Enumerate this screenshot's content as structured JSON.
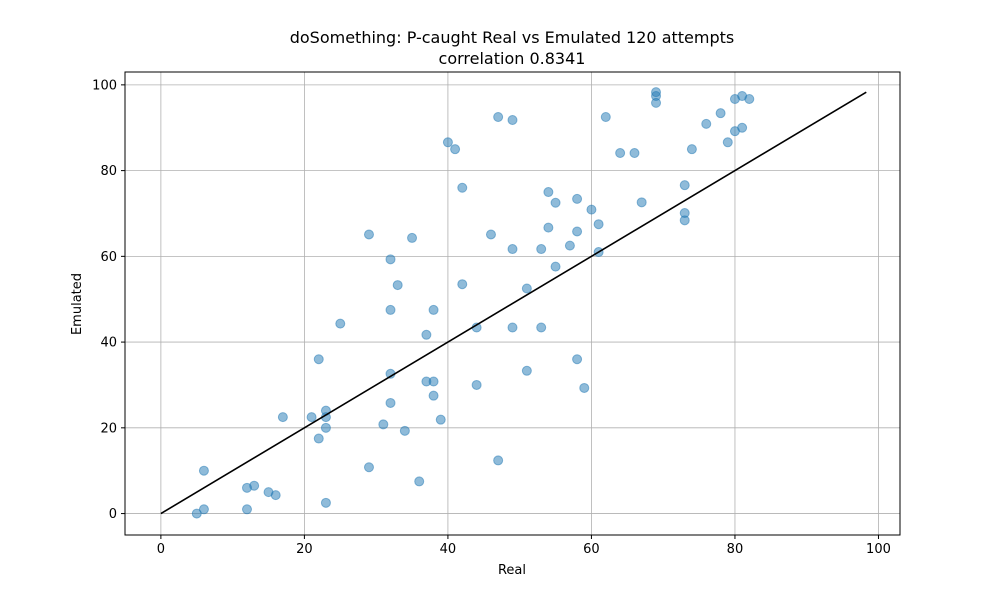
{
  "chart_data": {
    "type": "scatter",
    "title": "doSomething: P-caught Real vs Emulated 120 attempts",
    "subtitle": "correlation 0.8341",
    "xlabel": "Real",
    "ylabel": "Emulated",
    "xlim": [
      -5,
      103
    ],
    "ylim": [
      -5,
      103
    ],
    "xticks": [
      0,
      20,
      40,
      60,
      80,
      100
    ],
    "yticks": [
      0,
      20,
      40,
      60,
      80,
      100
    ],
    "grid": true,
    "colors": {
      "points": "#1f77b4",
      "line": "#000000",
      "grid": "#b0b0b0"
    },
    "reference_line": {
      "x": [
        0,
        98.3
      ],
      "y": [
        0,
        98.3
      ]
    },
    "points": [
      [
        5,
        0
      ],
      [
        6,
        1
      ],
      [
        6,
        10
      ],
      [
        12,
        1
      ],
      [
        12,
        6
      ],
      [
        13,
        6.5
      ],
      [
        15,
        5
      ],
      [
        16,
        4.3
      ],
      [
        17,
        22.5
      ],
      [
        21,
        22.5
      ],
      [
        22,
        36
      ],
      [
        22,
        17.5
      ],
      [
        23,
        2.5
      ],
      [
        23,
        20
      ],
      [
        23,
        22.5
      ],
      [
        23,
        24
      ],
      [
        25,
        44.3
      ],
      [
        29,
        65.1
      ],
      [
        29,
        10.8
      ],
      [
        31,
        20.8
      ],
      [
        32,
        59.3
      ],
      [
        32,
        47.5
      ],
      [
        32,
        32.6
      ],
      [
        32,
        25.8
      ],
      [
        33,
        53.3
      ],
      [
        34,
        19.3
      ],
      [
        35,
        64.3
      ],
      [
        36,
        7.5
      ],
      [
        37,
        41.7
      ],
      [
        37,
        30.8
      ],
      [
        38,
        47.5
      ],
      [
        38,
        30.8
      ],
      [
        38,
        27.5
      ],
      [
        39,
        21.9
      ],
      [
        40,
        86.6
      ],
      [
        41,
        85
      ],
      [
        42,
        76
      ],
      [
        42,
        53.5
      ],
      [
        44,
        43.4
      ],
      [
        44,
        30
      ],
      [
        46,
        65.1
      ],
      [
        47,
        92.5
      ],
      [
        47,
        12.4
      ],
      [
        49,
        91.8
      ],
      [
        49,
        61.7
      ],
      [
        49,
        43.4
      ],
      [
        51,
        52.5
      ],
      [
        51,
        33.3
      ],
      [
        53,
        61.7
      ],
      [
        53,
        43.4
      ],
      [
        54,
        75
      ],
      [
        54,
        66.7
      ],
      [
        55,
        72.5
      ],
      [
        55,
        57.6
      ],
      [
        57,
        62.5
      ],
      [
        58,
        73.4
      ],
      [
        58,
        65.8
      ],
      [
        58,
        36
      ],
      [
        59,
        29.3
      ],
      [
        60,
        70.9
      ],
      [
        61,
        67.5
      ],
      [
        61,
        61
      ],
      [
        62,
        92.5
      ],
      [
        64,
        84.1
      ],
      [
        66,
        84.1
      ],
      [
        67,
        72.6
      ],
      [
        69,
        98.3
      ],
      [
        69,
        97.4
      ],
      [
        69,
        95.8
      ],
      [
        73,
        76.6
      ],
      [
        73,
        70.1
      ],
      [
        73,
        68.4
      ],
      [
        74,
        85
      ],
      [
        76,
        90.9
      ],
      [
        78,
        93.4
      ],
      [
        79,
        86.6
      ],
      [
        80,
        96.7
      ],
      [
        80,
        89.2
      ],
      [
        81,
        97.4
      ],
      [
        81,
        90
      ],
      [
        82,
        96.7
      ]
    ]
  }
}
